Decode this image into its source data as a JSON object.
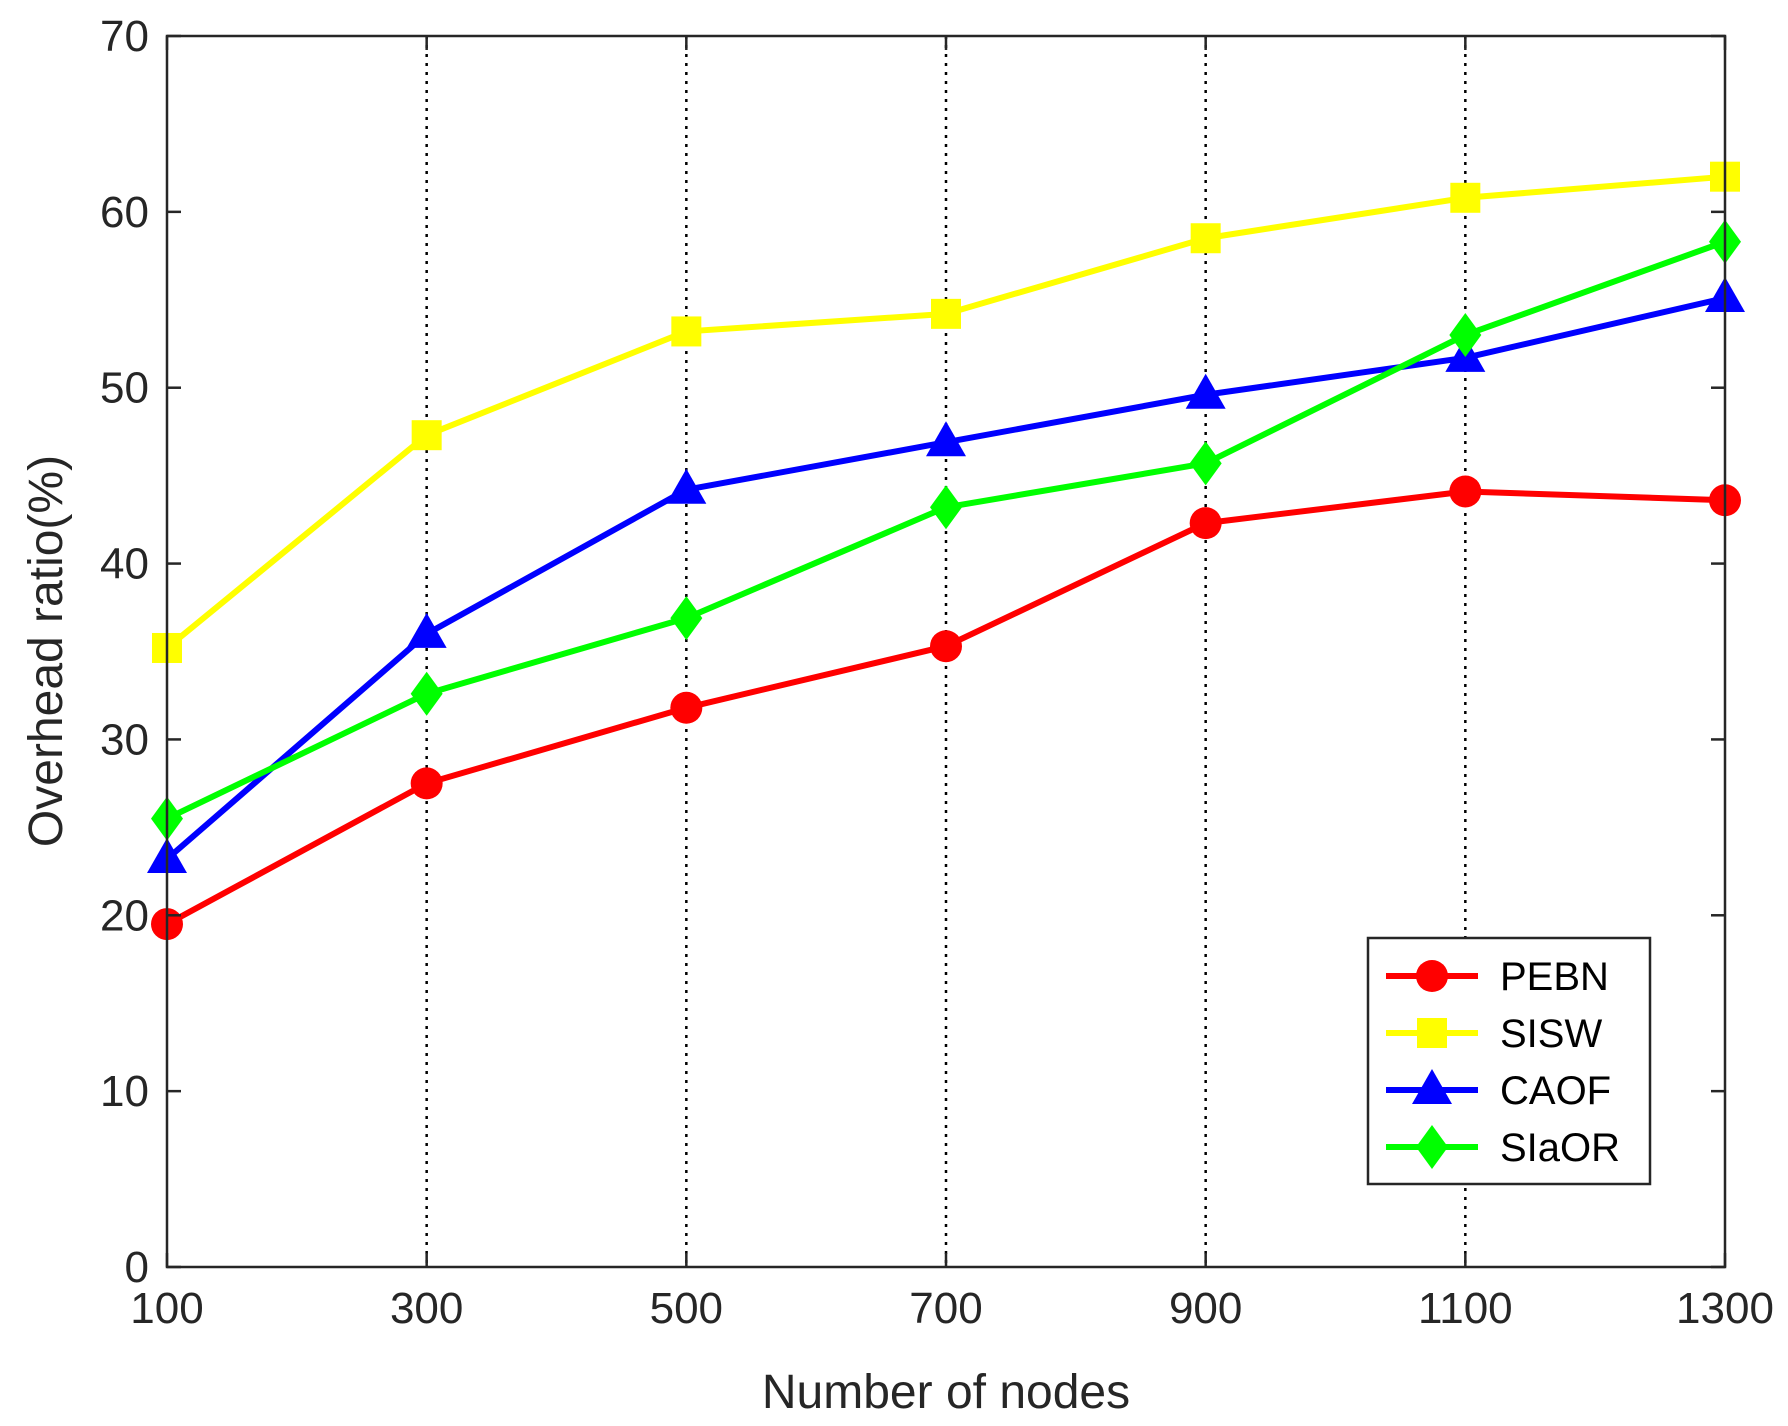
{
  "chart_data": {
    "type": "line",
    "title": "",
    "xlabel": "Number of nodes",
    "ylabel": "Overhead ratio(%)",
    "x": [
      100,
      300,
      500,
      700,
      900,
      1100,
      1300
    ],
    "xlim": [
      100,
      1300
    ],
    "ylim": [
      0,
      70
    ],
    "xticks": [
      "100",
      "300",
      "500",
      "700",
      "900",
      "1100",
      "1300"
    ],
    "yticks": [
      "0",
      "10",
      "20",
      "30",
      "40",
      "50",
      "60",
      "70"
    ],
    "grid": "vertical dotted",
    "legend_position": "bottom-right",
    "series": [
      {
        "name": "PEBN",
        "color": "#ff0000",
        "marker": "circle",
        "values": [
          19.5,
          27.5,
          31.8,
          35.3,
          42.3,
          44.1,
          43.6
        ]
      },
      {
        "name": "SISW",
        "color": "#ffff00",
        "marker": "square",
        "values": [
          35.2,
          47.3,
          53.2,
          54.2,
          58.5,
          60.8,
          62.0
        ]
      },
      {
        "name": "CAOF",
        "color": "#0000ff",
        "marker": "triangle",
        "values": [
          23.2,
          36.0,
          44.2,
          46.9,
          49.6,
          51.7,
          55.1
        ]
      },
      {
        "name": "SIaOR",
        "color": "#00ff00",
        "marker": "diamond",
        "values": [
          25.5,
          32.6,
          36.9,
          43.2,
          45.7,
          53.0,
          58.3
        ]
      }
    ]
  }
}
